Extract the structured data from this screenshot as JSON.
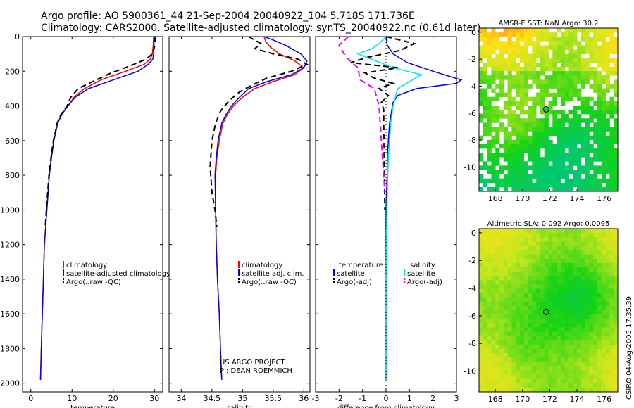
{
  "header": {
    "line1": "Argo profile: AO 5900361_44 21-Sep-2004 20040922_104 5.718S 171.736E",
    "line2": "Climatology: CARS2000. Satellite-adjusted climatology: synTS_20040922.nc (0.61d later)"
  },
  "footer": {
    "project": "US ARGO PROJECT",
    "pi": "PI: DEAN ROEMMICH",
    "stamp": "CSIRO 04-Aug-2005 17:35:39"
  },
  "colors": {
    "climatology": "#ff0000",
    "satellite": "#0000ff",
    "argo": "#000000",
    "sal_sat": "#00e5ee",
    "sal_argo": "#ff00ff"
  },
  "chart_data": [
    {
      "id": "temp",
      "type": "line",
      "xlabel": "temperature",
      "xlim": [
        -2,
        32
      ],
      "xticks": [
        0,
        10,
        20,
        30
      ],
      "ylim": [
        2050,
        0
      ],
      "yticks": [
        0,
        200,
        400,
        600,
        800,
        1000,
        1200,
        1400,
        1600,
        1800,
        2000
      ],
      "legend": [
        "climatology",
        "satellite-adjusted climatology",
        "Argo(..raw -QC)"
      ],
      "series": [
        {
          "name": "climatology",
          "color": "#ff0000",
          "dash": "",
          "x": [
            29.8,
            29.7,
            29.5,
            29.0,
            27.5,
            23,
            17,
            13,
            10.5,
            9,
            7.5,
            6.5,
            5.6,
            5,
            4.5,
            4.2,
            3.9,
            3.6,
            3.3,
            3.05,
            2.8,
            2.55,
            2.35
          ],
          "y": [
            0,
            50,
            100,
            130,
            160,
            200,
            250,
            300,
            350,
            400,
            450,
            500,
            600,
            700,
            800,
            900,
            1000,
            1100,
            1200,
            1400,
            1600,
            1800,
            1980
          ]
        },
        {
          "name": "satellite",
          "color": "#0000ff",
          "dash": "",
          "x": [
            29.9,
            29.9,
            29.8,
            29.6,
            28.5,
            26,
            20,
            14,
            10.8,
            9,
            7.5,
            6.5,
            5.6,
            5,
            4.5,
            4.2,
            3.9,
            3.6,
            3.3,
            3.05,
            2.8,
            2.55,
            2.35
          ],
          "y": [
            0,
            50,
            100,
            130,
            160,
            200,
            250,
            300,
            350,
            400,
            450,
            500,
            600,
            700,
            800,
            900,
            1000,
            1100,
            1200,
            1400,
            1600,
            1800,
            1980
          ]
        },
        {
          "name": "argo",
          "color": "#000000",
          "dash": "8,5",
          "x": [
            30.2,
            30.1,
            29.5,
            28,
            24,
            19.5,
            15,
            11.5,
            9.7,
            8.8,
            7.3,
            6.4,
            5.5,
            4.9,
            4.4,
            4.1,
            3.8,
            3.5
          ],
          "y": [
            0,
            50,
            100,
            130,
            170,
            210,
            260,
            300,
            350,
            400,
            450,
            500,
            600,
            700,
            800,
            900,
            1000,
            1100
          ]
        }
      ]
    },
    {
      "id": "sal",
      "type": "line",
      "xlabel": "salinity",
      "xlim": [
        33.8,
        36.1
      ],
      "xticks": [
        34,
        34.5,
        35,
        35.5,
        36
      ],
      "xticklabels": [
        "34",
        "34.5",
        "35",
        "35.5",
        "36"
      ],
      "ylim": [
        2050,
        0
      ],
      "legend": [
        "climatology",
        "satellite adj. clim.",
        "Argo(..raw -QC)"
      ],
      "series": [
        {
          "name": "climatology",
          "color": "#ff0000",
          "dash": "",
          "x": [
            35.35,
            35.38,
            35.45,
            35.6,
            35.85,
            36.0,
            35.85,
            35.5,
            35.2,
            35.0,
            34.85,
            34.75,
            34.68,
            34.62,
            34.58,
            34.56,
            34.56,
            34.57,
            34.59,
            34.62,
            34.64,
            34.65,
            34.66
          ],
          "y": [
            0,
            30,
            60,
            100,
            140,
            180,
            220,
            260,
            300,
            350,
            400,
            450,
            500,
            600,
            700,
            800,
            1000,
            1200,
            1400,
            1600,
            1800,
            1900,
            1980
          ]
        },
        {
          "name": "satellite",
          "color": "#0000ff",
          "dash": "",
          "x": [
            35.35,
            35.5,
            35.7,
            35.95,
            36.05,
            36.0,
            35.8,
            35.4,
            35.1,
            34.95,
            34.82,
            34.73,
            34.66,
            34.6,
            34.57,
            34.55,
            34.56,
            34.57,
            34.59,
            34.62,
            34.64,
            34.65,
            34.66
          ],
          "y": [
            0,
            20,
            50,
            100,
            140,
            180,
            220,
            260,
            300,
            350,
            400,
            450,
            500,
            600,
            700,
            800,
            1000,
            1200,
            1400,
            1600,
            1800,
            1900,
            1980
          ]
        },
        {
          "name": "argo",
          "color": "#000000",
          "dash": "8,5",
          "x": [
            35.1,
            35.3,
            35.2,
            35.5,
            35.9,
            36.05,
            35.8,
            35.4,
            35.15,
            34.95,
            34.78,
            34.64,
            34.56,
            34.5,
            34.47,
            34.5,
            34.55,
            34.58
          ],
          "y": [
            0,
            40,
            70,
            100,
            130,
            160,
            200,
            240,
            280,
            320,
            370,
            430,
            500,
            600,
            750,
            900,
            1000,
            1100
          ]
        }
      ]
    },
    {
      "id": "diff",
      "type": "line",
      "xlabel": "difference from climatology",
      "xlim": [
        -3,
        3
      ],
      "xticks": [
        -3,
        -2,
        -1,
        0,
        1,
        2,
        3
      ],
      "ylim": [
        2050,
        0
      ],
      "legend_left_title": "temperature",
      "legend_left": [
        "satellite",
        "Argo(-adj)"
      ],
      "legend_right_title": "salinity",
      "legend_right": [
        "satellite",
        "Argo(-adj)"
      ],
      "series": [
        {
          "name": "temp_satellite",
          "color": "#0000ff",
          "dash": "",
          "x": [
            0.0,
            0.05,
            0.3,
            0.9,
            2.0,
            3.2,
            3.0,
            1.3,
            0.5,
            0.3,
            0.25,
            0.15,
            0.1,
            0.05,
            0.05,
            0.02,
            0.0,
            0.0,
            0.0,
            0.0
          ],
          "y": [
            0,
            50,
            100,
            150,
            200,
            250,
            270,
            300,
            340,
            380,
            420,
            500,
            600,
            700,
            800,
            900,
            1000,
            1300,
            1600,
            1980
          ]
        },
        {
          "name": "temp_argo",
          "color": "#000000",
          "dash": "8,5",
          "x": [
            0.0,
            1.2,
            0.6,
            -0.8,
            -1.5,
            0.5,
            -0.9,
            -0.5,
            0.3,
            -0.3,
            0.1,
            -0.2,
            -0.1,
            -0.1,
            -0.05
          ],
          "y": [
            0,
            40,
            80,
            120,
            150,
            180,
            210,
            240,
            270,
            300,
            340,
            380,
            420,
            500,
            1000
          ]
        },
        {
          "name": "sal_satellite",
          "color": "#00e5ee",
          "dash": "",
          "x": [
            0.0,
            -0.3,
            -0.6,
            -1.2,
            0.3,
            1.5,
            0.5,
            0.3,
            0.2,
            0.1,
            0.05,
            0.02,
            0.0,
            0.0,
            0.0
          ],
          "y": [
            0,
            40,
            70,
            100,
            180,
            220,
            300,
            400,
            500,
            700,
            900,
            1100,
            1400,
            1700,
            1980
          ]
        },
        {
          "name": "sal_argo",
          "color": "#ff00ff",
          "dash": "8,5",
          "x": [
            -1.6,
            -2.0,
            -1.7,
            -1.2,
            -1.1,
            -0.5,
            -0.3,
            -0.25,
            -0.2,
            -0.15,
            -0.1,
            -0.05
          ],
          "y": [
            0,
            50,
            120,
            180,
            250,
            300,
            400,
            500,
            600,
            700,
            800,
            900
          ]
        }
      ]
    },
    {
      "id": "sst",
      "type": "heatmap",
      "title": "AMSR-E SST: NaN Argo: 30.2",
      "xlim": [
        166.8,
        177
      ],
      "ylim": [
        -11.8,
        0.3
      ],
      "xticks": [
        168,
        170,
        172,
        174,
        176
      ],
      "yticks": [
        0,
        -2,
        -4,
        -6,
        -8,
        -10
      ],
      "profile_marker": {
        "lon": 171.736,
        "lat": -5.718
      }
    },
    {
      "id": "sla",
      "type": "heatmap",
      "title": "Altimetric SLA: 0.092 Argo: 0.0095",
      "xlim": [
        166.8,
        177
      ],
      "ylim": [
        -11.5,
        0.3
      ],
      "xticks": [
        168,
        170,
        172,
        174,
        176
      ],
      "yticks": [
        0,
        -2,
        -4,
        -6,
        -8,
        -10
      ],
      "profile_marker": {
        "lon": 171.736,
        "lat": -5.718
      }
    }
  ]
}
